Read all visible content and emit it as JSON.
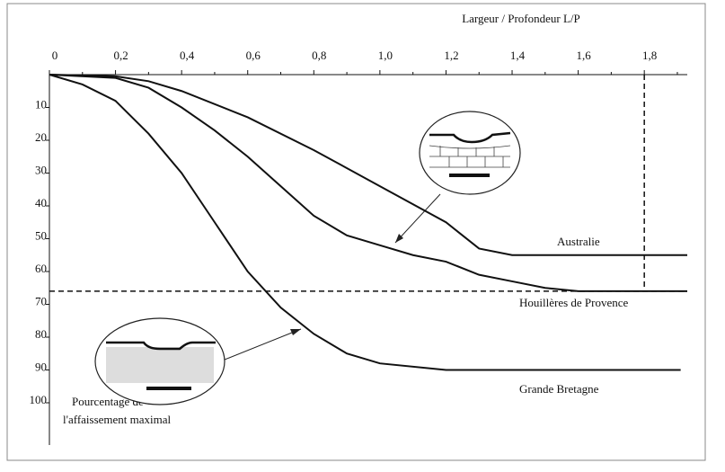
{
  "chart_data": {
    "type": "line",
    "x_label": "Largeur / Profondeur L/P",
    "y_label": [
      "Pourcentage de",
      "l'affaissement maximal"
    ],
    "xlim": [
      0,
      1.93
    ],
    "ylim": [
      0,
      100
    ],
    "y_reversed": true,
    "x_axis_position": "top",
    "xticks": [
      0,
      {
        "value": 0.2,
        "label": "0,2"
      },
      {
        "value": 0.4,
        "label": "0,4"
      },
      {
        "value": 0.6,
        "label": "0,6"
      },
      {
        "value": 0.8,
        "label": "0,8"
      },
      {
        "value": 1.0,
        "label": "1,0"
      },
      {
        "value": 1.2,
        "label": "1,2"
      },
      {
        "value": 1.4,
        "label": "1,4"
      },
      {
        "value": 1.6,
        "label": "1,6"
      },
      {
        "value": 1.8,
        "label": "1,8"
      }
    ],
    "yticks": [
      10,
      20,
      30,
      40,
      50,
      60,
      70,
      80,
      90,
      100
    ],
    "reference_lines": {
      "x": 1.8,
      "y": 66
    },
    "series": [
      {
        "name": "Australie",
        "color": "#111111",
        "x": [
          0,
          0.2,
          0.3,
          0.4,
          0.6,
          0.8,
          1.0,
          1.2,
          1.3,
          1.4,
          1.6,
          1.93
        ],
        "values": [
          0,
          0.5,
          2,
          5,
          13,
          23,
          34,
          45,
          53,
          55,
          55,
          55
        ]
      },
      {
        "name": "Houillères de Provence",
        "color": "#111111",
        "x": [
          0,
          0.2,
          0.3,
          0.4,
          0.5,
          0.6,
          0.7,
          0.8,
          0.9,
          1.0,
          1.1,
          1.2,
          1.3,
          1.4,
          1.5,
          1.6,
          1.93
        ],
        "values": [
          0,
          1,
          4,
          10,
          17,
          25,
          34,
          43,
          49,
          52,
          55,
          57,
          61,
          63,
          65,
          66,
          66
        ]
      },
      {
        "name": "Grande Bretagne",
        "color": "#111111",
        "x": [
          0,
          0.1,
          0.2,
          0.3,
          0.4,
          0.5,
          0.6,
          0.7,
          0.8,
          0.9,
          1.0,
          1.2,
          1.91
        ],
        "values": [
          0,
          3,
          8,
          18,
          30,
          45,
          60,
          71,
          79,
          85,
          88,
          90,
          90
        ]
      }
    ]
  }
}
